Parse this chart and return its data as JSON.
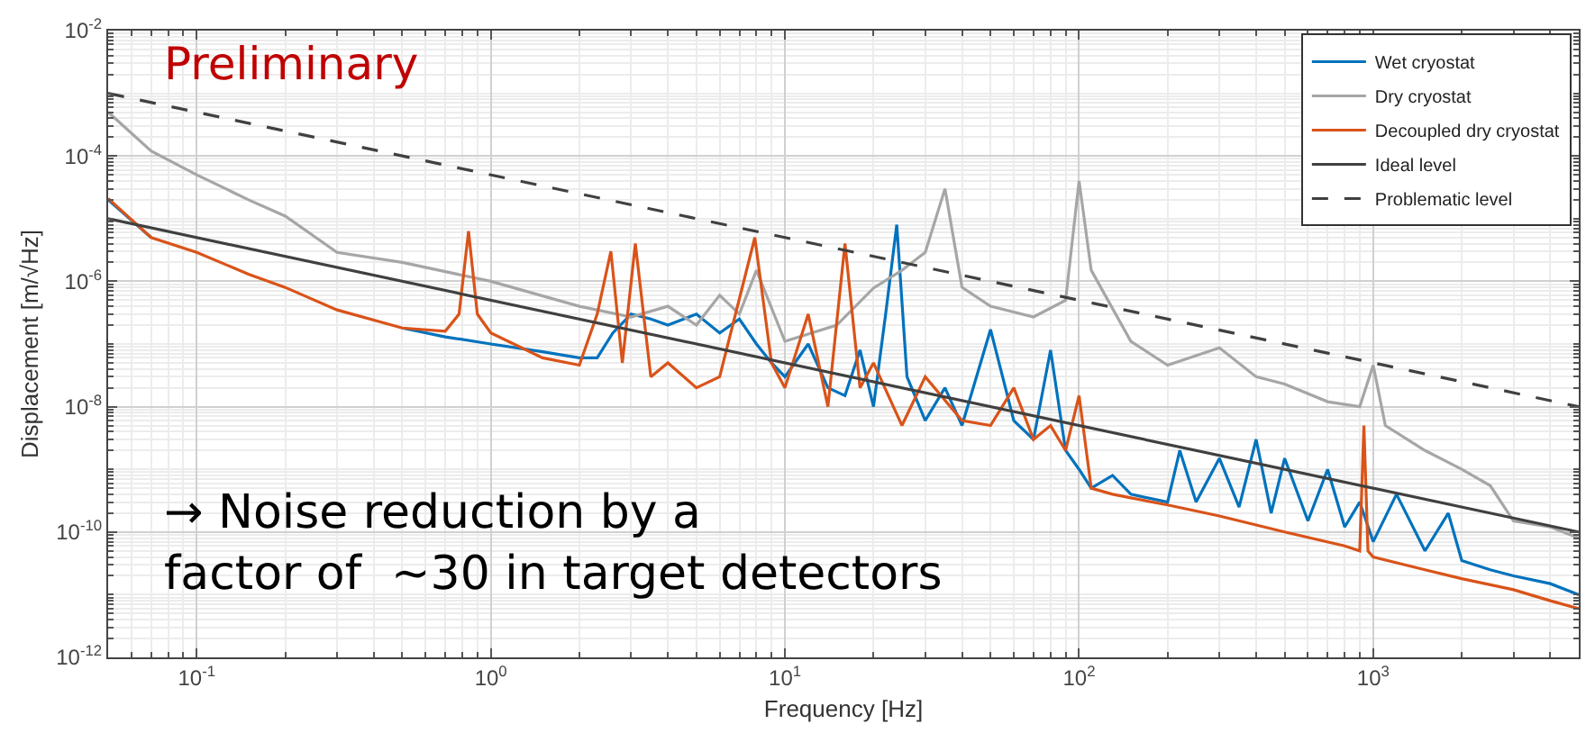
{
  "chart_data": {
    "type": "line",
    "xlabel": "Frequency [Hz]",
    "ylabel": "Displacement [m/√Hz]",
    "log": "xy",
    "grid": true,
    "legend": "top right",
    "xlim": [
      0.05,
      5000
    ],
    "ylim": [
      1e-12,
      0.01
    ],
    "xticks": [
      {
        "value": 0.1,
        "label": "10$^{-1}$"
      },
      {
        "value": 1,
        "label": "10$^{0}$"
      },
      {
        "value": 10,
        "label": "10$^{1}$"
      },
      {
        "value": 100,
        "label": "10$^{2}$"
      },
      {
        "value": 1000,
        "label": "10$^{3}$"
      }
    ],
    "yticks": [
      {
        "value": 1e-12,
        "label": "10$^{-12}$"
      },
      {
        "value": 1e-10,
        "label": "10$^{-10}$"
      },
      {
        "value": 1e-08,
        "label": "10$^{-8}$"
      },
      {
        "value": 1e-06,
        "label": "10$^{-6}$"
      },
      {
        "value": 0.0001,
        "label": "10$^{-4}$"
      },
      {
        "value": 0.01,
        "label": "10$^{-2}$"
      }
    ],
    "annotations": [
      "Preliminary",
      "→ Noise reduction by a\nfactor of  ~30 in target detectors"
    ],
    "series": [
      {
        "name": "Wet cryostat",
        "color": "#0072bd",
        "x": [
          0.05,
          0.07,
          0.1,
          0.15,
          0.2,
          0.3,
          0.5,
          0.7,
          1,
          1.5,
          2,
          2.3,
          2.6,
          3,
          3.5,
          4,
          5,
          6,
          7,
          8,
          9,
          10,
          12,
          14,
          16,
          18,
          20,
          22,
          24,
          26,
          30,
          35,
          40,
          50,
          60,
          70,
          80,
          90,
          100,
          110,
          130,
          150,
          200,
          220,
          250,
          300,
          350,
          400,
          450,
          500,
          600,
          700,
          800,
          900,
          1000,
          1200,
          1500,
          1800,
          2000,
          2500,
          3000,
          4000,
          5000
        ],
        "values": [
          2e-05,
          5e-06,
          null,
          null,
          null,
          null,
          1.8e-07,
          1.3e-07,
          1e-07,
          7.5e-08,
          6e-08,
          6e-08,
          1.5e-07,
          3e-07,
          2.5e-07,
          2e-07,
          3e-07,
          1.5e-07,
          2.5e-07,
          1e-07,
          5e-08,
          3e-08,
          1e-07,
          2e-08,
          1.5e-08,
          8e-08,
          1e-08,
          3e-07,
          8e-06,
          3e-08,
          6e-09,
          2e-08,
          5e-09,
          1.7e-07,
          6e-09,
          3e-09,
          8e-08,
          2e-09,
          1e-09,
          5e-10,
          8e-10,
          4e-10,
          3e-10,
          2e-09,
          3e-10,
          1.5e-09,
          2.5e-10,
          3e-09,
          2e-10,
          1.5e-09,
          1.5e-10,
          1e-09,
          1.2e-10,
          3e-10,
          7e-11,
          4e-10,
          5e-11,
          2e-10,
          3.5e-11,
          2.5e-11,
          2e-11,
          1.5e-11,
          1e-11
        ]
      },
      {
        "name": "Dry cryostat",
        "color": "#a6a6a6",
        "x": [
          0.05,
          0.07,
          0.1,
          0.15,
          0.2,
          0.3,
          0.5,
          1,
          2,
          3,
          4,
          5,
          6,
          7,
          8,
          10,
          15,
          20,
          25,
          30,
          35,
          40,
          50,
          70,
          90,
          100,
          110,
          150,
          200,
          300,
          400,
          500,
          700,
          900,
          1000,
          1100,
          1500,
          2000,
          2500,
          3000,
          4000,
          5000
        ],
        "values": [
          0.0005,
          0.00012,
          5e-05,
          2e-05,
          1.1e-05,
          2.9e-06,
          2e-06,
          1e-06,
          4e-07,
          2.7e-07,
          4e-07,
          2e-07,
          6e-07,
          3e-07,
          1.5e-06,
          1.1e-07,
          2e-07,
          7.8e-07,
          1.5e-06,
          2.9e-06,
          3e-05,
          8e-07,
          4e-07,
          2.7e-07,
          5e-07,
          4e-05,
          1.5e-06,
          1.1e-07,
          4.6e-08,
          8.7e-08,
          3e-08,
          2.3e-08,
          1.2e-08,
          1e-08,
          4.6e-08,
          5e-09,
          2e-09,
          1e-09,
          5.5e-10,
          1.5e-10,
          1.2e-10,
          8e-11
        ]
      },
      {
        "name": "Decoupled dry cryostat",
        "color": "#d95319",
        "x": [
          0.05,
          0.07,
          0.1,
          0.15,
          0.2,
          0.3,
          0.5,
          0.7,
          0.78,
          0.84,
          0.9,
          1,
          1.5,
          2,
          2.3,
          2.56,
          2.8,
          3.1,
          3.5,
          4,
          5,
          6,
          7.9,
          9,
          10,
          12,
          14,
          16,
          18,
          20,
          25,
          30,
          40,
          50,
          60,
          70,
          80,
          90,
          100,
          110,
          130,
          150,
          200,
          300,
          500,
          800,
          900,
          930,
          960,
          1000,
          1500,
          2000,
          3000,
          4000,
          5000
        ],
        "values": [
          2.1e-05,
          5e-06,
          2.9e-06,
          1.3e-06,
          8e-07,
          3.5e-07,
          1.8e-07,
          1.6e-07,
          3e-07,
          6.3e-06,
          3e-07,
          1.5e-07,
          6e-08,
          4.6e-08,
          3e-07,
          3e-06,
          5e-08,
          4e-06,
          3e-08,
          5e-08,
          2e-08,
          3e-08,
          5e-06,
          5e-08,
          2e-08,
          3e-07,
          1e-08,
          4e-06,
          2e-08,
          5e-08,
          5e-09,
          3e-08,
          6e-09,
          5e-09,
          2e-08,
          3e-09,
          5e-09,
          2e-09,
          1.5e-08,
          5e-10,
          4e-10,
          3.5e-10,
          2.7e-10,
          1.8e-10,
          1e-10,
          6e-11,
          5e-11,
          5e-09,
          5e-11,
          4e-11,
          2.5e-11,
          1.8e-11,
          1.2e-11,
          8e-12,
          6e-12
        ]
      },
      {
        "name": "Ideal level",
        "color": "#404040",
        "x": [
          0.05,
          5000
        ],
        "values": [
          1e-05,
          1e-10
        ]
      },
      {
        "name": "Problematic level",
        "color": "#404040",
        "line_style": "dashed",
        "x": [
          0.05,
          5000
        ],
        "values": [
          0.001,
          1e-08
        ]
      }
    ]
  }
}
